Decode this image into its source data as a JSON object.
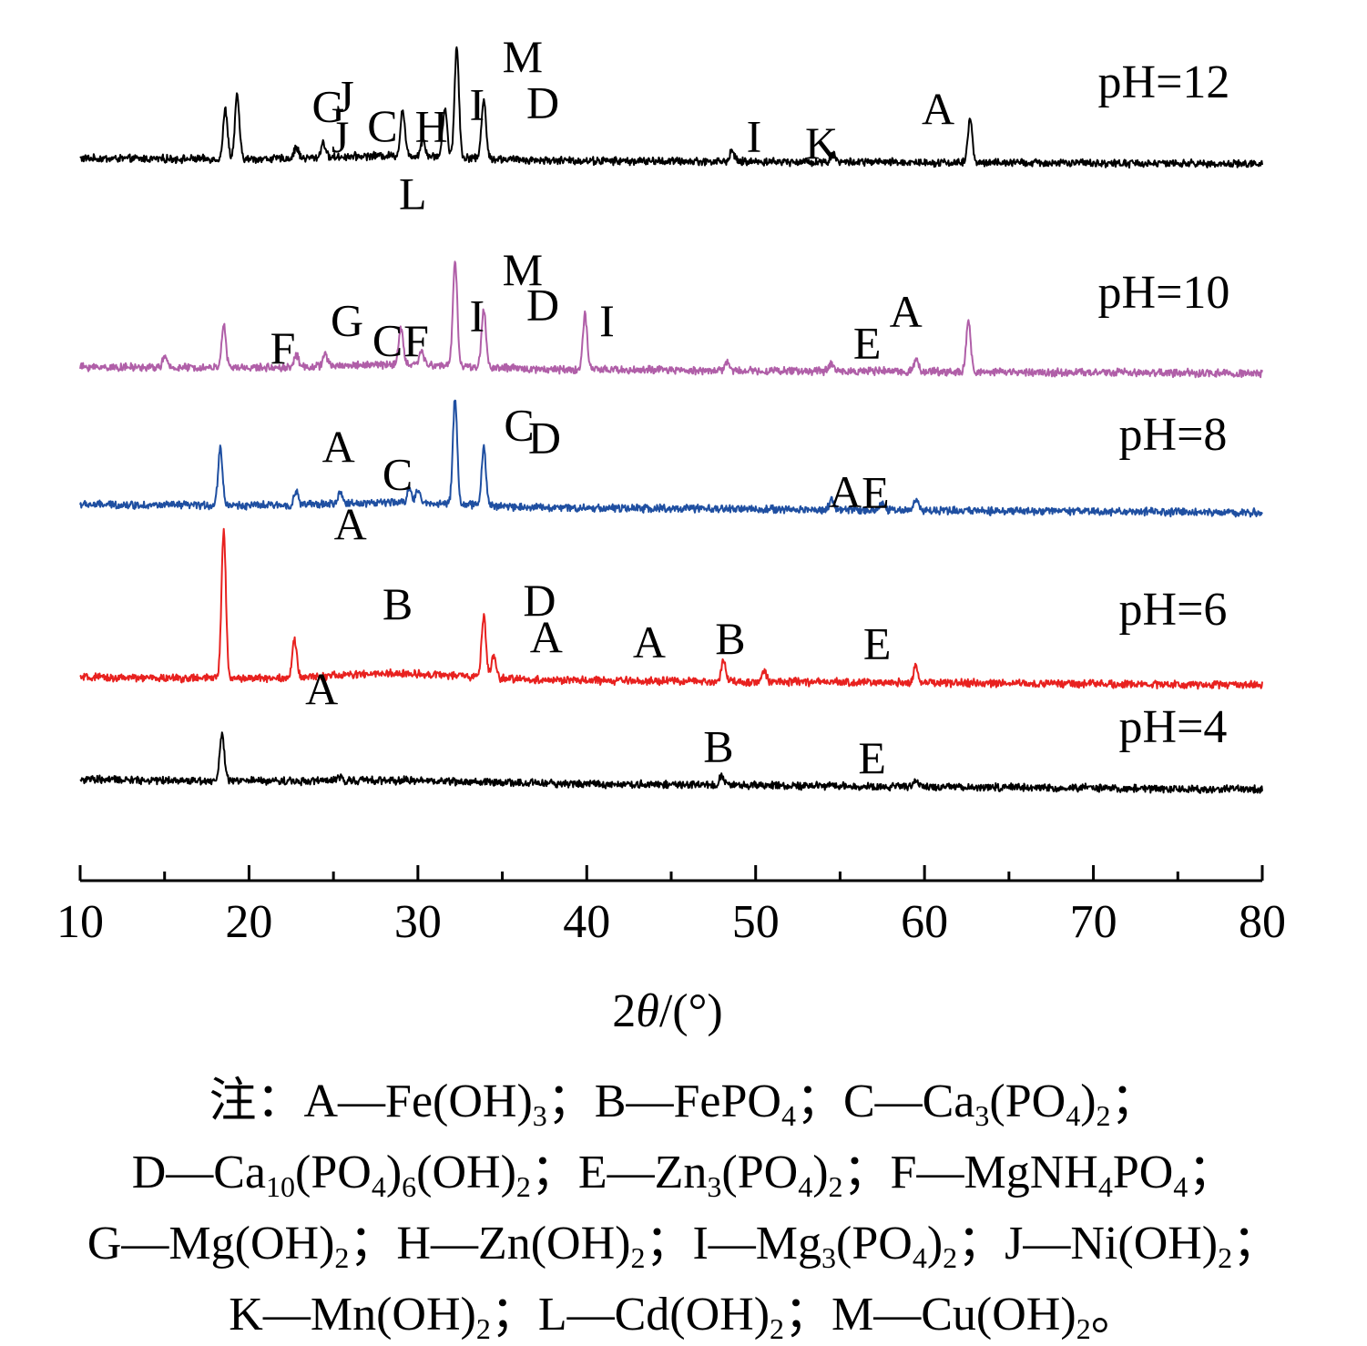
{
  "chart_data": {
    "type": "line",
    "xlabel": "2θ/(°)",
    "xlim": [
      10,
      80
    ],
    "xticks": [
      10,
      20,
      30,
      40,
      50,
      60,
      70,
      80
    ],
    "y_axis_visible": false,
    "grid": false,
    "legend": "none",
    "series": [
      {
        "name": "pH=12",
        "color": "#000000",
        "peaks": [
          [
            18.6,
            45
          ],
          [
            19.3,
            58
          ],
          [
            22.8,
            10
          ],
          [
            24.4,
            14
          ],
          [
            29.1,
            42
          ],
          [
            30.3,
            15
          ],
          [
            31.6,
            45
          ],
          [
            32.3,
            100
          ],
          [
            33.9,
            55
          ],
          [
            48.6,
            10
          ],
          [
            54.6,
            8
          ],
          [
            62.7,
            40
          ]
        ],
        "labels": [
          {
            "text": "G",
            "x": 24.7,
            "y": 50
          },
          {
            "text": "J",
            "x": 25.7,
            "y": 59
          },
          {
            "text": "J",
            "x": 25.4,
            "y": 22
          },
          {
            "text": "C",
            "x": 27.9,
            "y": 32
          },
          {
            "text": "H",
            "x": 30.8,
            "y": 32
          },
          {
            "text": "L",
            "x": 29.7,
            "y": -30
          },
          {
            "text": "I",
            "x": 33.5,
            "y": 52
          },
          {
            "text": "M",
            "x": 36.2,
            "y": 96
          },
          {
            "text": "D",
            "x": 37.4,
            "y": 54
          },
          {
            "text": "I",
            "x": 49.9,
            "y": 24
          },
          {
            "text": "K",
            "x": 53.9,
            "y": 18
          },
          {
            "text": "A",
            "x": 60.8,
            "y": 50
          }
        ]
      },
      {
        "name": "pH=10",
        "color": "#b05fa8",
        "peaks": [
          [
            15.0,
            10
          ],
          [
            18.5,
            40
          ],
          [
            22.8,
            12
          ],
          [
            24.5,
            12
          ],
          [
            29.0,
            35
          ],
          [
            30.2,
            14
          ],
          [
            32.2,
            100
          ],
          [
            33.9,
            55
          ],
          [
            39.9,
            52
          ],
          [
            48.3,
            8
          ],
          [
            54.5,
            8
          ],
          [
            59.5,
            12
          ],
          [
            62.6,
            48
          ]
        ],
        "labels": [
          {
            "text": "F",
            "x": 22.0,
            "y": 20
          },
          {
            "text": "G",
            "x": 25.8,
            "y": 47
          },
          {
            "text": "C",
            "x": 28.2,
            "y": 28
          },
          {
            "text": "F",
            "x": 29.9,
            "y": 28
          },
          {
            "text": "I",
            "x": 33.5,
            "y": 52
          },
          {
            "text": "M",
            "x": 36.2,
            "y": 96
          },
          {
            "text": "D",
            "x": 37.4,
            "y": 63
          },
          {
            "text": "I",
            "x": 41.2,
            "y": 48
          },
          {
            "text": "E",
            "x": 56.6,
            "y": 28
          },
          {
            "text": "A",
            "x": 58.9,
            "y": 58
          }
        ]
      },
      {
        "name": "pH=8",
        "color": "#1f4fa1",
        "peaks": [
          [
            18.3,
            55
          ],
          [
            22.8,
            12
          ],
          [
            25.4,
            10
          ],
          [
            29.5,
            14
          ],
          [
            30.0,
            12
          ],
          [
            32.2,
            100
          ],
          [
            33.9,
            55
          ],
          [
            54.5,
            10
          ],
          [
            57.5,
            8
          ],
          [
            59.5,
            12
          ]
        ],
        "labels": [
          {
            "text": "A",
            "x": 25.3,
            "y": 58
          },
          {
            "text": "A",
            "x": 26.0,
            "y": -16
          },
          {
            "text": "C",
            "x": 28.8,
            "y": 32
          },
          {
            "text": "C",
            "x": 36.0,
            "y": 80
          },
          {
            "text": "D",
            "x": 37.5,
            "y": 68
          },
          {
            "text": "A",
            "x": 55.3,
            "y": 18
          },
          {
            "text": "E",
            "x": 57.1,
            "y": 18
          }
        ]
      },
      {
        "name": "pH=6",
        "color": "#e8211f",
        "peaks": [
          [
            18.5,
            100
          ],
          [
            22.7,
            25
          ],
          [
            33.9,
            42
          ],
          [
            34.5,
            15
          ],
          [
            48.1,
            14
          ],
          [
            50.5,
            8
          ],
          [
            59.5,
            12
          ]
        ],
        "labels": [
          {
            "text": "B",
            "x": 28.8,
            "y": 52
          },
          {
            "text": "D",
            "x": 37.2,
            "y": 55
          },
          {
            "text": "A",
            "x": 37.6,
            "y": 30
          },
          {
            "text": "A",
            "x": 43.7,
            "y": 27
          },
          {
            "text": "B",
            "x": 48.5,
            "y": 30
          },
          {
            "text": "E",
            "x": 57.2,
            "y": 27
          },
          {
            "text": "A",
            "x": 24.3,
            "y": -6
          }
        ]
      },
      {
        "name": "pH=4",
        "color": "#000000",
        "peaks": [
          [
            18.4,
            100
          ],
          [
            25.4,
            8
          ],
          [
            48.0,
            20
          ],
          [
            59.5,
            12
          ]
        ],
        "labels": [
          {
            "text": "B",
            "x": 47.8,
            "y": 84
          },
          {
            "text": "E",
            "x": 56.9,
            "y": 62
          }
        ]
      }
    ],
    "note": [
      [
        {
          "t": "注："
        },
        {
          "t": "A—Fe(OH)"
        },
        {
          "s": "3"
        },
        {
          "t": "；B—FePO"
        },
        {
          "s": "4"
        },
        {
          "t": "；C—Ca"
        },
        {
          "s": "3"
        },
        {
          "t": "(PO"
        },
        {
          "s": "4"
        },
        {
          "t": ")"
        },
        {
          "s": "2"
        },
        {
          "t": "；"
        }
      ],
      [
        {
          "t": "D—Ca"
        },
        {
          "s": "10"
        },
        {
          "t": "(PO"
        },
        {
          "s": "4"
        },
        {
          "t": ")"
        },
        {
          "s": "6"
        },
        {
          "t": "(OH)"
        },
        {
          "s": "2"
        },
        {
          "t": "；E—Zn"
        },
        {
          "s": "3"
        },
        {
          "t": "(PO"
        },
        {
          "s": "4"
        },
        {
          "t": ")"
        },
        {
          "s": "2"
        },
        {
          "t": "；F—MgNH"
        },
        {
          "s": "4"
        },
        {
          "t": "PO"
        },
        {
          "s": "4"
        },
        {
          "t": "；"
        }
      ],
      [
        {
          "t": "G—Mg(OH)"
        },
        {
          "s": "2"
        },
        {
          "t": "；H—Zn(OH)"
        },
        {
          "s": "2"
        },
        {
          "t": "；I—Mg"
        },
        {
          "s": "3"
        },
        {
          "t": "(PO"
        },
        {
          "s": "4"
        },
        {
          "t": ")"
        },
        {
          "s": "2"
        },
        {
          "t": "；J—Ni(OH)"
        },
        {
          "s": "2"
        },
        {
          "t": "；"
        }
      ],
      [
        {
          "t": "K—Mn(OH)"
        },
        {
          "s": "2"
        },
        {
          "t": "；L—Cd(OH)"
        },
        {
          "s": "2"
        },
        {
          "t": "；M—Cu(OH)"
        },
        {
          "s": "2"
        },
        {
          "t": "。"
        }
      ]
    ]
  }
}
